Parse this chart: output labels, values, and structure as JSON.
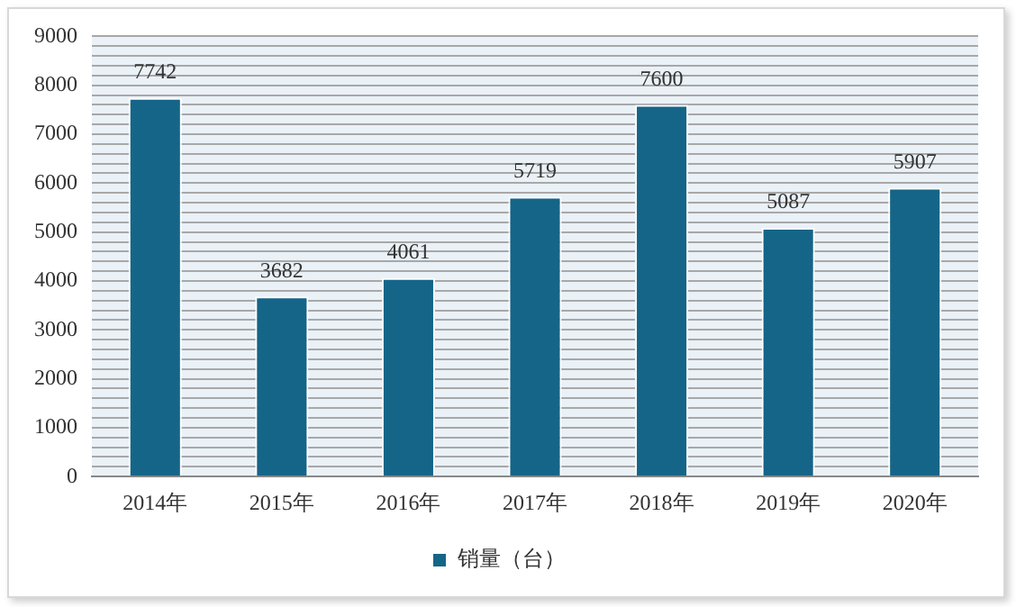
{
  "chart_data": {
    "type": "bar",
    "categories": [
      "2014年",
      "2015年",
      "2016年",
      "2017年",
      "2018年",
      "2019年",
      "2020年"
    ],
    "series": [
      {
        "name": "销量（台）",
        "color": "#156588",
        "values": [
          7742,
          3682,
          4061,
          5719,
          7600,
          5087,
          5907
        ]
      }
    ],
    "ylim": [
      0,
      9000
    ],
    "yticks": [
      0,
      {
        "value": 200,
        "label": null
      },
      {
        "value": 400,
        "label": null
      },
      {
        "value": 600,
        "label": null
      },
      {
        "value": 800,
        "label": null
      },
      1000,
      {
        "value": 1200,
        "label": null
      },
      {
        "value": 1400,
        "label": null
      },
      {
        "value": 1600,
        "label": null
      },
      {
        "value": 1800,
        "label": null
      },
      2000,
      {
        "value": 2200,
        "label": null
      },
      {
        "value": 2400,
        "label": null
      },
      {
        "value": 2600,
        "label": null
      },
      {
        "value": 2800,
        "label": null
      },
      3000,
      {
        "value": 3200,
        "label": null
      },
      {
        "value": 3400,
        "label": null
      },
      {
        "value": 3600,
        "label": null
      },
      {
        "value": 3800,
        "label": null
      },
      4000,
      {
        "value": 4200,
        "label": null
      },
      {
        "value": 4400,
        "label": null
      },
      {
        "value": 4600,
        "label": null
      },
      {
        "value": 4800,
        "label": null
      },
      5000,
      {
        "value": 5200,
        "label": null
      },
      {
        "value": 5400,
        "label": null
      },
      {
        "value": 5600,
        "label": null
      },
      {
        "value": 5800,
        "label": null
      },
      6000,
      {
        "value": 6200,
        "label": null
      },
      {
        "value": 6400,
        "label": null
      },
      {
        "value": 6600,
        "label": null
      },
      {
        "value": 6800,
        "label": null
      },
      7000,
      {
        "value": 7200,
        "label": null
      },
      {
        "value": 7400,
        "label": null
      },
      {
        "value": 7600,
        "label": null
      },
      {
        "value": 7800,
        "label": null
      },
      8000,
      {
        "value": 8200,
        "label": null
      },
      {
        "value": 8400,
        "label": null
      },
      {
        "value": 8600,
        "label": null
      },
      {
        "value": 8800,
        "label": null
      },
      9000
    ],
    "grid": "y",
    "legend": "bottom",
    "data_labels": true
  }
}
